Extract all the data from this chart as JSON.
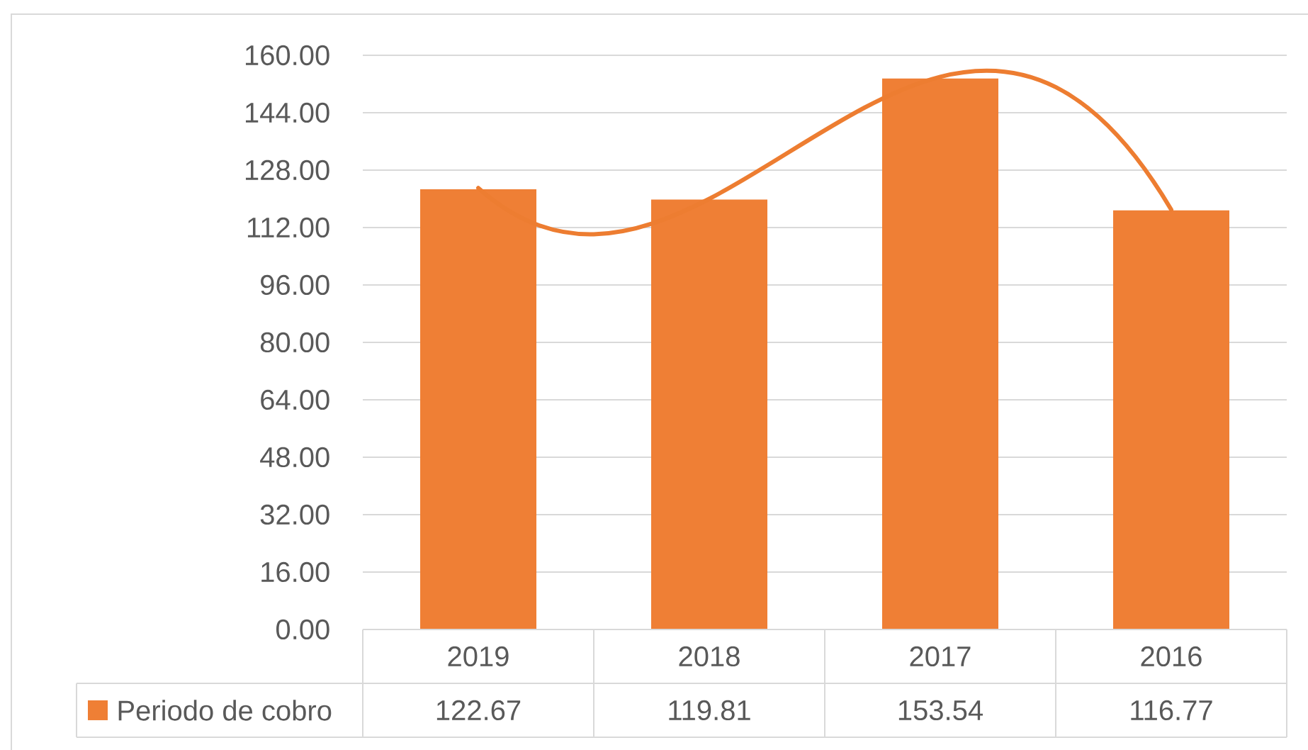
{
  "chart_data": {
    "type": "bar",
    "categories": [
      "2019",
      "2018",
      "2017",
      "2016"
    ],
    "series": [
      {
        "name": "Periodo de cobro",
        "color": "#ef7f35",
        "values": [
          122.67,
          119.81,
          153.54,
          116.77
        ],
        "value_labels": [
          "122.67",
          "119.81",
          "153.54",
          "116.77"
        ]
      },
      {
        "type": "line",
        "color": "#ed7d31",
        "values": [
          123,
          120,
          154,
          117
        ]
      }
    ],
    "ylim": [
      0,
      160
    ],
    "yticks": [
      {
        "value": 0,
        "label": "0.00"
      },
      {
        "value": 16,
        "label": "16.00"
      },
      {
        "value": 32,
        "label": "32.00"
      },
      {
        "value": 48,
        "label": "48.00"
      },
      {
        "value": 64,
        "label": "64.00"
      },
      {
        "value": 80,
        "label": "80.00"
      },
      {
        "value": 96,
        "label": "96.00"
      },
      {
        "value": 112,
        "label": "112.00"
      },
      {
        "value": 128,
        "label": "128.00"
      },
      {
        "value": 144,
        "label": "144.00"
      },
      {
        "value": 160,
        "label": "160.00"
      }
    ],
    "grid": "y",
    "legend": "bottom left"
  }
}
